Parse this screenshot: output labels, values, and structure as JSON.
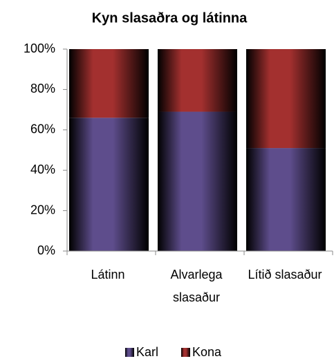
{
  "chart_data": {
    "type": "stacked_bar",
    "title": "Kyn slasaðra og látinna",
    "categories": [
      "Látinn",
      "Alvarlega slasaður",
      "Lítið slasaður"
    ],
    "series": [
      {
        "name": "Karl",
        "color": "#5e4d8c",
        "values": [
          66,
          69,
          51
        ]
      },
      {
        "name": "Kona",
        "color": "#a3302f",
        "values": [
          34,
          31,
          49
        ]
      }
    ],
    "ylim": [
      0,
      100
    ],
    "yticks": [
      {
        "value": 0,
        "label": "0%"
      },
      {
        "value": 20,
        "label": "20%"
      },
      {
        "value": 40,
        "label": "40%"
      },
      {
        "value": 60,
        "label": "60%"
      },
      {
        "value": 80,
        "label": "80%"
      },
      {
        "value": 100,
        "label": "100%"
      }
    ],
    "legend": "bottom"
  }
}
